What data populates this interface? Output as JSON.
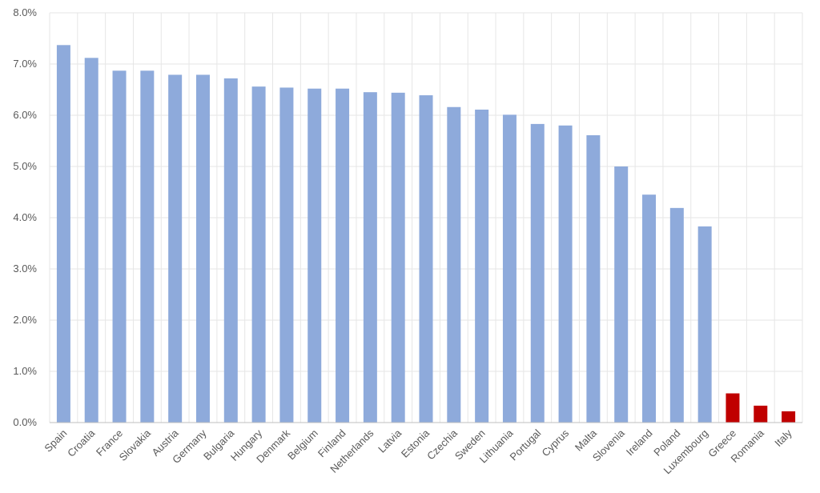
{
  "chart_data": {
    "type": "bar",
    "title": "",
    "xlabel": "",
    "ylabel": "",
    "ylim": [
      0,
      8
    ],
    "y_tick_labels": [
      "0.0%",
      "1.0%",
      "2.0%",
      "3.0%",
      "4.0%",
      "5.0%",
      "6.0%",
      "7.0%",
      "8.0%"
    ],
    "y_tick_values": [
      0,
      1,
      2,
      3,
      4,
      5,
      6,
      7,
      8
    ],
    "grid": true,
    "legend": "none",
    "categories": [
      "Spain",
      "Croatia",
      "France",
      "Slovakia",
      "Austria",
      "Germany",
      "Bulgaria",
      "Hungary",
      "Denmark",
      "Belgium",
      "Finland",
      "Netherlands",
      "Latvia",
      "Estonia",
      "Czechia",
      "Sweden",
      "Lithuania",
      "Portugal",
      "Cyprus",
      "Malta",
      "Slovenia",
      "Ireland",
      "Poland",
      "Luxembourg",
      "Greece",
      "Romania",
      "Italy"
    ],
    "values": [
      7.37,
      7.12,
      6.87,
      6.87,
      6.79,
      6.79,
      6.72,
      6.56,
      6.54,
      6.52,
      6.52,
      6.45,
      6.44,
      6.39,
      6.16,
      6.11,
      6.01,
      5.83,
      5.8,
      5.61,
      5.0,
      4.45,
      4.19,
      3.83,
      0.57,
      0.33,
      0.22
    ],
    "colors": {
      "default": "#8eaadb",
      "highlight": "#c00000"
    },
    "highlighted": [
      "Greece",
      "Romania",
      "Italy"
    ]
  }
}
